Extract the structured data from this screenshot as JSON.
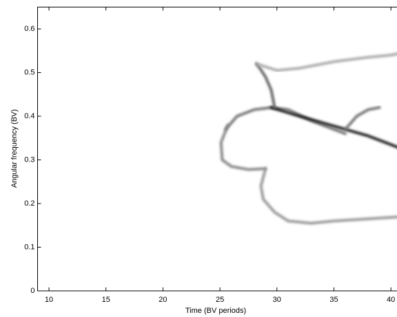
{
  "chart_data": {
    "type": "line",
    "xlabel": "Time (BV periods)",
    "ylabel": "Angular frequency (BV)",
    "xlim": [
      9,
      41
    ],
    "xticks": [
      10,
      15,
      20,
      25,
      30,
      35,
      40
    ],
    "ylim": [
      0,
      0.65
    ],
    "yticks": [
      0,
      0.1,
      0.2,
      0.3,
      0.4,
      0.5,
      0.6
    ],
    "series": [
      {
        "color": "#777777",
        "x": [
          25.5,
          26.5,
          28,
          29.5,
          31,
          33,
          35,
          36
        ],
        "values": [
          0.37,
          0.4,
          0.415,
          0.42,
          0.415,
          0.39,
          0.37,
          0.36
        ]
      },
      {
        "color": "#888888",
        "x": [
          25.7,
          25.1,
          25.2,
          26,
          27.5,
          29
        ],
        "values": [
          0.38,
          0.34,
          0.3,
          0.285,
          0.278,
          0.28
        ]
      },
      {
        "color": "#222222",
        "x": [
          29.5,
          32,
          34,
          36,
          38,
          40,
          41
        ],
        "values": [
          0.42,
          0.4,
          0.385,
          0.37,
          0.355,
          0.335,
          0.325
        ]
      },
      {
        "color": "#666666",
        "x": [
          29.8,
          29.5,
          29,
          28.5,
          28.2
        ],
        "values": [
          0.42,
          0.46,
          0.49,
          0.51,
          0.52
        ]
      },
      {
        "color": "#aaaaaa",
        "x": [
          28.2,
          30,
          32,
          35,
          38,
          40,
          41
        ],
        "values": [
          0.52,
          0.505,
          0.51,
          0.525,
          0.535,
          0.54,
          0.545
        ]
      },
      {
        "color": "#777777",
        "x": [
          36,
          37,
          38,
          39
        ],
        "values": [
          0.37,
          0.4,
          0.415,
          0.42
        ]
      },
      {
        "color": "#999999",
        "x": [
          29,
          28.6,
          28.8,
          29.8,
          31,
          33,
          35,
          38,
          41
        ],
        "values": [
          0.28,
          0.24,
          0.21,
          0.18,
          0.16,
          0.155,
          0.16,
          0.165,
          0.17
        ]
      }
    ]
  }
}
